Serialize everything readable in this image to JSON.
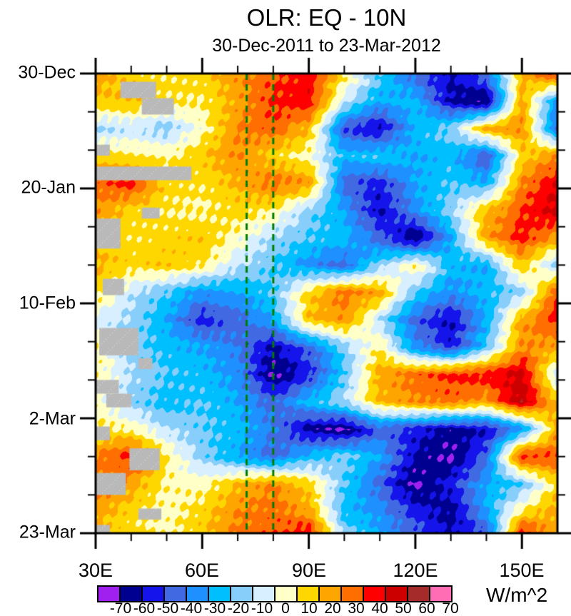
{
  "chart_data": {
    "type": "heatmap",
    "title": "OLR: EQ - 10N",
    "subtitle": "30-Dec-2011 to 23-Mar-2012",
    "units": "W/m^2",
    "x_axis": {
      "ticks": [
        "30E",
        "60E",
        "90E",
        "120E",
        "150E"
      ],
      "tick_lons": [
        30,
        60,
        90,
        120,
        150
      ],
      "minor_step": 10,
      "range": [
        30,
        160
      ]
    },
    "y_axis": {
      "ticks": [
        "30-Dec",
        "20-Jan",
        "10-Feb",
        "2-Mar",
        "23-Mar"
      ],
      "tick_days": [
        0,
        21,
        42,
        63,
        84
      ],
      "minor_step_days": 7,
      "range_days": [
        0,
        84
      ],
      "direction": "time-increases-downward"
    },
    "levels": [
      -70,
      -60,
      -50,
      -40,
      -30,
      -20,
      -10,
      0,
      10,
      20,
      30,
      40,
      50,
      60,
      70
    ],
    "colors": [
      "#A020F0",
      "#000090",
      "#1414EB",
      "#4169E1",
      "#1E90FF",
      "#00BFFF",
      "#87CEFA",
      "#D7EFFF",
      "#FFFFC8",
      "#FFD700",
      "#FFA500",
      "#FF6E00",
      "#FF0000",
      "#CD0000",
      "#A52A2A",
      "#FF6EB4"
    ],
    "colorbar_labels": [
      "-70",
      "-60",
      "-50",
      "-40",
      "-30",
      "-20",
      "-10",
      "0",
      "10",
      "20",
      "30",
      "40",
      "50",
      "60",
      "70"
    ],
    "dashed_lines": {
      "color": "#007D00",
      "lons": [
        72.5,
        80
      ]
    },
    "missing_color": "#B9B9B9",
    "missing_regions": [
      {
        "lon": [
          37,
          47
        ],
        "day": [
          1.5,
          4.5
        ]
      },
      {
        "lon": [
          43,
          52
        ],
        "day": [
          4.5,
          7.5
        ]
      },
      {
        "lon": [
          30,
          34
        ],
        "day": [
          13,
          15
        ]
      },
      {
        "lon": [
          30,
          57
        ],
        "day": [
          17,
          19.5
        ]
      },
      {
        "lon": [
          43,
          48
        ],
        "day": [
          24.5,
          26.5
        ]
      },
      {
        "lon": [
          30,
          37
        ],
        "day": [
          26.5,
          32
        ]
      },
      {
        "lon": [
          32,
          38
        ],
        "day": [
          37.5,
          40.5
        ]
      },
      {
        "lon": [
          31,
          42
        ],
        "day": [
          46.5,
          51.5
        ]
      },
      {
        "lon": [
          42,
          46
        ],
        "day": [
          52,
          54
        ]
      },
      {
        "lon": [
          30,
          36.5
        ],
        "day": [
          56,
          58.5
        ]
      },
      {
        "lon": [
          33,
          40
        ],
        "day": [
          58.5,
          61
        ]
      },
      {
        "lon": [
          30,
          34
        ],
        "day": [
          64.5,
          67
        ]
      },
      {
        "lon": [
          39.5,
          48
        ],
        "day": [
          68.5,
          72.5
        ]
      },
      {
        "lon": [
          30,
          38.5
        ],
        "day": [
          73,
          77
        ]
      },
      {
        "lon": [
          42,
          48.5
        ],
        "day": [
          79.5,
          81.5
        ]
      },
      {
        "lon": [
          30,
          34
        ],
        "day": [
          82.5,
          84
        ]
      }
    ],
    "grid": {
      "lons": [
        30,
        40,
        50,
        60,
        70,
        80,
        90,
        100,
        110,
        120,
        130,
        140,
        150,
        160
      ],
      "days": [
        0,
        5,
        10,
        15,
        20,
        25,
        30,
        35,
        40,
        45,
        50,
        55,
        60,
        65,
        70,
        75,
        80,
        84
      ],
      "values": [
        [
          25,
          15,
          12,
          15,
          28,
          38,
          45,
          12,
          -18,
          -45,
          -62,
          -40,
          20,
          45
        ],
        [
          18,
          20,
          12,
          10,
          25,
          42,
          48,
          -5,
          -30,
          -25,
          -62,
          -72,
          25,
          -35
        ],
        [
          -12,
          -8,
          -15,
          5,
          30,
          38,
          20,
          -50,
          -62,
          -25,
          -15,
          25,
          30,
          -45
        ],
        [
          15,
          10,
          8,
          18,
          30,
          15,
          5,
          -25,
          -20,
          -30,
          -25,
          -50,
          15,
          30
        ],
        [
          35,
          45,
          15,
          12,
          22,
          35,
          28,
          -45,
          -55,
          -30,
          -20,
          -28,
          30,
          50
        ],
        [
          28,
          15,
          10,
          8,
          15,
          10,
          -15,
          -30,
          -62,
          -35,
          -15,
          20,
          40,
          55
        ],
        [
          20,
          12,
          15,
          18,
          5,
          -12,
          -20,
          -25,
          -45,
          -72,
          -30,
          25,
          45,
          25
        ],
        [
          22,
          15,
          18,
          12,
          -8,
          -20,
          -35,
          -45,
          -15,
          10,
          -25,
          -30,
          20,
          -15
        ],
        [
          15,
          -8,
          -20,
          -35,
          -30,
          -20,
          15,
          35,
          25,
          -20,
          -35,
          -25,
          -15,
          40
        ],
        [
          -5,
          -12,
          -30,
          -55,
          -45,
          -30,
          20,
          28,
          -10,
          -45,
          -62,
          -30,
          25,
          45
        ],
        [
          10,
          -15,
          -25,
          -30,
          -40,
          -62,
          -45,
          -15,
          10,
          -35,
          -55,
          -20,
          30,
          25
        ],
        [
          8,
          -10,
          -20,
          -25,
          -35,
          -72,
          -55,
          -20,
          25,
          35,
          42,
          45,
          55,
          -10
        ],
        [
          5,
          -15,
          -25,
          -20,
          -30,
          -45,
          -25,
          -10,
          20,
          30,
          35,
          25,
          58,
          20
        ],
        [
          12,
          8,
          -10,
          -18,
          -25,
          -40,
          -65,
          -72,
          -45,
          -55,
          -65,
          -60,
          -35,
          25
        ],
        [
          30,
          45,
          10,
          -15,
          -30,
          -45,
          -25,
          -15,
          -30,
          -62,
          -72,
          -45,
          45,
          40
        ],
        [
          35,
          25,
          8,
          5,
          20,
          30,
          15,
          -20,
          -45,
          -72,
          -55,
          -30,
          -20,
          15
        ],
        [
          25,
          15,
          5,
          15,
          30,
          35,
          25,
          -25,
          -35,
          -55,
          -65,
          -30,
          10,
          25
        ],
        [
          20,
          12,
          8,
          18,
          32,
          38,
          48,
          -15,
          -30,
          -45,
          -62,
          -50,
          48,
          20
        ]
      ]
    }
  }
}
